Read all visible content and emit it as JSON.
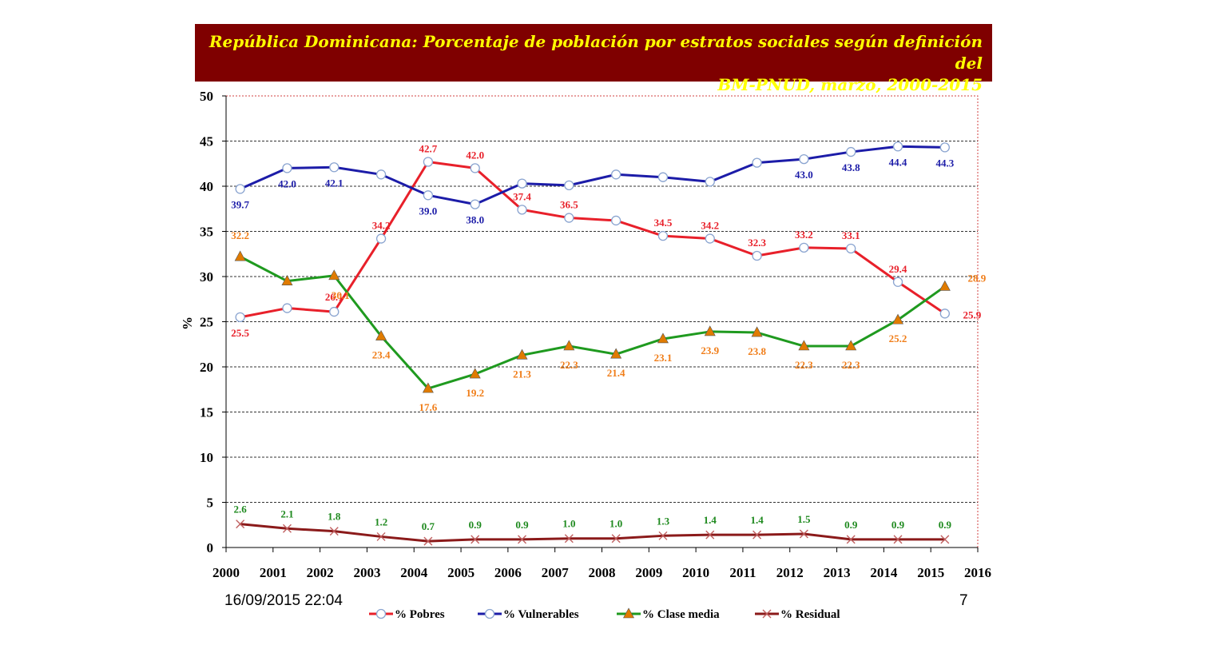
{
  "title": {
    "line1": "República Dominicana:  Porcentaje de población por estratos sociales según definición del",
    "line2": "BM-PNUD, marzo, 2000-2015"
  },
  "footer": {
    "date": "16/09/2015 22:04",
    "page": "7"
  },
  "colors": {
    "pobres": "#e8202a",
    "vulnerables": "#1c1ca8",
    "clase_media": "#1f9a1f",
    "clase_media_labels": "#f07d18",
    "clase_media_marker": "#e07b00",
    "residual": "#8b1a1a",
    "residual_labels": "#1f8a1f",
    "title_bg": "#7f0000",
    "title_text": "#ffff00",
    "plot_border": "#d04040"
  },
  "chart_data": {
    "type": "line",
    "ylabel": "%",
    "ylim": [
      0,
      50
    ],
    "yticks": [
      "0",
      "5",
      "10",
      "15",
      "20",
      "25",
      "30",
      "35",
      "40",
      "45",
      "50"
    ],
    "xticks": [
      "2000",
      "2001",
      "2002",
      "2003",
      "2004",
      "2005",
      "2006",
      "2007",
      "2008",
      "2009",
      "2010",
      "2011",
      "2012",
      "2013",
      "2014",
      "2015",
      "2016"
    ],
    "grid": true,
    "legend_position": "bottom",
    "series": [
      {
        "key": "pobres",
        "name": "% Pobres",
        "marker": "circle",
        "values": [
          25.5,
          26.5,
          26.1,
          34.2,
          42.7,
          42.0,
          37.4,
          36.5,
          36.2,
          34.5,
          34.2,
          32.3,
          33.2,
          33.1,
          29.4,
          25.9
        ],
        "labels": [
          "25.5",
          "",
          "26.1",
          "34.2",
          "42.7",
          "42.0",
          "37.4",
          "36.5",
          "",
          "34.5",
          "34.2",
          "32.3",
          "33.2",
          "33.1",
          "29.4",
          "25.9"
        ]
      },
      {
        "key": "vulnerables",
        "name": "% Vulnerables",
        "marker": "circle",
        "values": [
          39.7,
          42.0,
          42.1,
          41.3,
          39.0,
          38.0,
          40.3,
          40.1,
          41.3,
          41.0,
          40.5,
          42.6,
          43.0,
          43.8,
          44.4,
          44.3
        ],
        "labels": [
          "39.7",
          "42.0",
          "42.1",
          "",
          "39.0",
          "38.0",
          "",
          "",
          "",
          "",
          "",
          "",
          "43.0",
          "43.8",
          "44.4",
          "44.3"
        ]
      },
      {
        "key": "clase_media",
        "name": "% Clase media",
        "marker": "triangle",
        "values": [
          32.2,
          29.5,
          30.1,
          23.4,
          17.6,
          19.2,
          21.3,
          22.3,
          21.4,
          23.1,
          23.9,
          23.8,
          22.3,
          22.3,
          25.2,
          28.9
        ],
        "labels": [
          "32.2",
          "",
          "30.1",
          "23.4",
          "17.6",
          "19.2",
          "21.3",
          "22.3",
          "21.4",
          "23.1",
          "23.9",
          "23.8",
          "22.3",
          "22.3",
          "25.2",
          "28.9"
        ]
      },
      {
        "key": "residual",
        "name": "% Residual",
        "marker": "x",
        "values": [
          2.6,
          2.1,
          1.8,
          1.2,
          0.7,
          0.9,
          0.9,
          1.0,
          1.0,
          1.3,
          1.4,
          1.4,
          1.5,
          0.9,
          0.9,
          0.9
        ],
        "labels": [
          "2.6",
          "2.1",
          "1.8",
          "1.2",
          "0.7",
          "0.9",
          "0.9",
          "1.0",
          "1.0",
          "1.3",
          "1.4",
          "1.4",
          "1.5",
          "0.9",
          "0.9",
          "0.9"
        ]
      }
    ]
  }
}
